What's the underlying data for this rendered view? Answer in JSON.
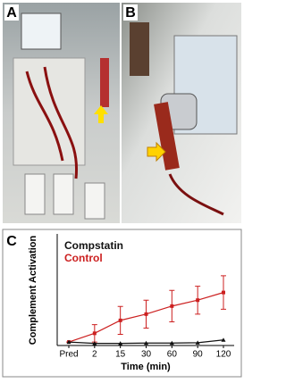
{
  "panels": {
    "a": "A",
    "b": "B"
  },
  "chart_data": {
    "type": "line",
    "panel_label": "C",
    "x_label": "Time (min)",
    "y_label": "Complement Activation",
    "categories": [
      "Pred",
      "2",
      "15",
      "30",
      "60",
      "90",
      "120"
    ],
    "ylim": [
      0,
      32
    ],
    "series": [
      {
        "name": "Compstatin",
        "color": "#111111",
        "values": [
          1,
          0.6,
          0.6,
          0.7,
          0.7,
          0.8,
          1.6
        ]
      },
      {
        "name": "Control",
        "color": "#cc2020",
        "values": [
          1,
          3.5,
          7.2,
          9,
          11.3,
          13,
          15.2
        ],
        "errors": [
          0,
          2.5,
          4,
          4,
          4.5,
          4,
          4.8
        ]
      }
    ]
  }
}
